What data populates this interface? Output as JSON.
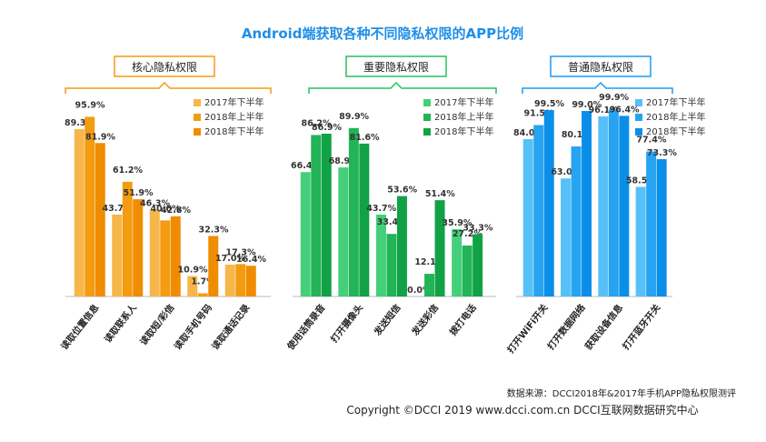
{
  "chart_data": {
    "type": "bar",
    "title": "Android端获取各种不同隐私权限的APP比例",
    "title_color": "#1f8fe8",
    "ylim": [
      0,
      100
    ],
    "grid": false,
    "legend_position": "top-right of each group",
    "groups": [
      {
        "label": "核心隐私权限",
        "accent": "#f39c12",
        "categories": [
          "读取位置信息",
          "读取联系人",
          "读取短/彩信",
          "读取手机号码",
          "读取通话记录"
        ],
        "series": [
          {
            "name": "2017年下半年",
            "color": "#f7b64a",
            "values": [
              89.3,
              43.7,
              46.3,
              10.9,
              17.0
            ]
          },
          {
            "name": "2018年上半年",
            "color": "#f39c12",
            "values": [
              95.9,
              61.2,
              40.6,
              1.7,
              17.3
            ]
          },
          {
            "name": "2018年下半年",
            "color": "#f08c00",
            "values": [
              81.9,
              51.9,
              42.8,
              32.3,
              16.4
            ]
          }
        ]
      },
      {
        "label": "重要隐私权限",
        "accent": "#27c25a",
        "categories": [
          "使用话筒录音",
          "打开摄像头",
          "发送短信",
          "发送彩信",
          "拨打电话"
        ],
        "series": [
          {
            "name": "2017年下半年",
            "color": "#44d07a",
            "values": [
              66.4,
              68.9,
              43.7,
              0.0,
              35.9
            ]
          },
          {
            "name": "2018年上半年",
            "color": "#22b457",
            "values": [
              86.2,
              89.9,
              33.4,
              12.1,
              27.2
            ]
          },
          {
            "name": "2018年下半年",
            "color": "#12a246",
            "values": [
              86.9,
              81.6,
              53.6,
              51.4,
              33.3
            ]
          }
        ]
      },
      {
        "label": "普通隐私权限",
        "accent": "#1a9bf0",
        "categories": [
          "打开WiFi开关",
          "打开数据网络",
          "获取设备信息",
          "打开蓝牙开关"
        ],
        "series": [
          {
            "name": "2017年下半年",
            "color": "#58c0f8",
            "values": [
              84.0,
              63.0,
              96.1,
              58.5
            ]
          },
          {
            "name": "2018年上半年",
            "color": "#26a4f2",
            "values": [
              91.5,
              80.1,
              99.9,
              77.4
            ]
          },
          {
            "name": "2018年下半年",
            "color": "#0b8ee8",
            "values": [
              99.5,
              99.0,
              96.4,
              73.3
            ]
          }
        ]
      }
    ]
  },
  "footer": {
    "source": "数据来源：DCCI2018年&2017年手机APP隐私权限测评",
    "copyright": "Copyright ©DCCI 2019  www.dcci.com.cn   DCCI互联网数据研究中心"
  }
}
